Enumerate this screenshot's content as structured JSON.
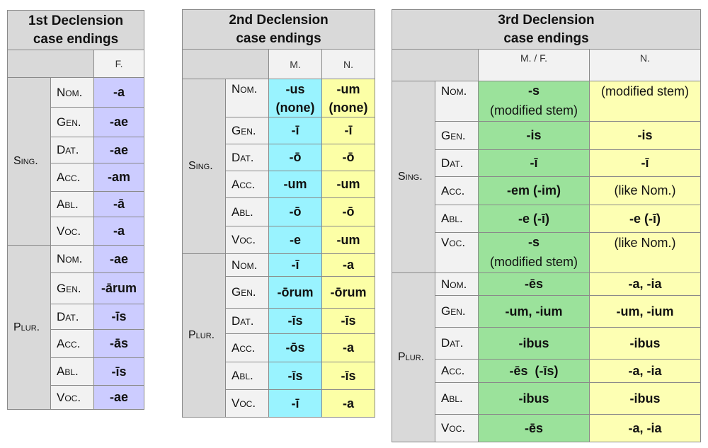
{
  "colors": {
    "header_gray": "#d9d9d9",
    "case_gray": "#f2f2f2",
    "first_f": "#ccccff",
    "second_m": "#99f3ff",
    "second_n": "#fcffa6",
    "third_mf": "#9be29b",
    "third_n": "#fdffb3"
  },
  "decl1": {
    "title1": "1st Declension",
    "title2": "case endings",
    "col_f": "F.",
    "group_sing": "Sing.",
    "group_plur": "Plur.",
    "rows": [
      {
        "case": "Nom.",
        "f": "-a"
      },
      {
        "case": "Gen.",
        "f": "-ae"
      },
      {
        "case": "Dat.",
        "f": "-ae"
      },
      {
        "case": "Acc.",
        "f": "-am"
      },
      {
        "case": "Abl.",
        "f": "-ā"
      },
      {
        "case": "Voc.",
        "f": "-a"
      },
      {
        "case": "Nom.",
        "f": "-ae"
      },
      {
        "case": "Gen.",
        "f": "-ārum"
      },
      {
        "case": "Dat.",
        "f": "-īs"
      },
      {
        "case": "Acc.",
        "f": "-ās"
      },
      {
        "case": "Abl.",
        "f": "-īs"
      },
      {
        "case": "Voc.",
        "f": "-ae"
      }
    ]
  },
  "decl2": {
    "title1": "2nd Declension",
    "title2": "case endings",
    "col_m": "M.",
    "col_n": "N.",
    "group_sing": "Sing.",
    "group_plur": "Plur.",
    "rows": [
      {
        "case": "Nom.",
        "m1": "-us",
        "m2": "(none)",
        "n1": "-um",
        "n2": "(none)"
      },
      {
        "case": "Gen.",
        "m": "-ī",
        "n": "-ī"
      },
      {
        "case": "Dat.",
        "m": "-ō",
        "n": "-ō"
      },
      {
        "case": "Acc.",
        "m": "-um",
        "n": "-um"
      },
      {
        "case": "Abl.",
        "m": "-ō",
        "n": "-ō"
      },
      {
        "case": "Voc.",
        "m": "-e",
        "n": "-um"
      },
      {
        "case": "Nom.",
        "m": "-ī",
        "n": "-a"
      },
      {
        "case": "Gen.",
        "m": "-ōrum",
        "n": "-ōrum"
      },
      {
        "case": "Dat.",
        "m": "-īs",
        "n": "-īs"
      },
      {
        "case": "Acc.",
        "m": "-ōs",
        "n": "-a"
      },
      {
        "case": "Abl.",
        "m": "-īs",
        "n": "-īs"
      },
      {
        "case": "Voc.",
        "m": "-ī",
        "n": "-a"
      }
    ]
  },
  "decl3": {
    "title1": "3rd Declension",
    "title2": "case endings",
    "col_mf": "M. / F.",
    "col_n": "N.",
    "group_sing": "Sing.",
    "group_plur": "Plur.",
    "rows": [
      {
        "case": "Nom.",
        "mf1": "-s",
        "mf2": "(modified stem)",
        "n": "(modified stem)"
      },
      {
        "case": "Gen.",
        "mf": "-is",
        "n": "-is"
      },
      {
        "case": "Dat.",
        "mf": "-ī",
        "n": "-ī"
      },
      {
        "case": "Acc.",
        "mf": "-em (-im)",
        "n": "(like Nom.)"
      },
      {
        "case": "Abl.",
        "mf": "-e (-ī)",
        "n": "-e (-ī)"
      },
      {
        "case": "Voc.",
        "mf1": "-s",
        "mf2": "(modified stem)",
        "n": "(like Nom.)"
      },
      {
        "case": "Nom.",
        "mf": "-ēs",
        "n": "-a, -ia"
      },
      {
        "case": "Gen.",
        "mf": "-um, -ium",
        "n": "-um, -ium"
      },
      {
        "case": "Dat.",
        "mf": "-ibus",
        "n": "-ibus"
      },
      {
        "case": "Acc.",
        "mf": "-ēs  (-īs)",
        "n": "-a, -ia"
      },
      {
        "case": "Abl.",
        "mf": "-ibus",
        "n": "-ibus"
      },
      {
        "case": "Voc.",
        "mf": "-ēs",
        "n": "-a, -ia"
      }
    ]
  }
}
